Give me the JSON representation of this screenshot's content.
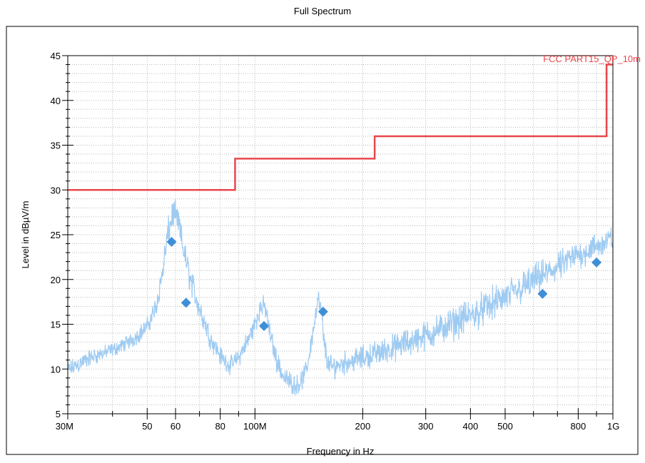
{
  "chart_data": {
    "type": "line",
    "title": "Full Spectrum",
    "xlabel": "Frequency in Hz",
    "ylabel": "Level in dBµV/m",
    "xscale": "log",
    "xlim": [
      30000000,
      1000000000
    ],
    "ylim": [
      5,
      45
    ],
    "grid": true,
    "x_ticks": [
      {
        "value": 30000000,
        "label": "30M"
      },
      {
        "value": 50000000,
        "label": "50"
      },
      {
        "value": 60000000,
        "label": "60"
      },
      {
        "value": 80000000,
        "label": "80"
      },
      {
        "value": 100000000,
        "label": "100M"
      },
      {
        "value": 200000000,
        "label": "200"
      },
      {
        "value": 300000000,
        "label": "300"
      },
      {
        "value": 400000000,
        "label": "400"
      },
      {
        "value": 500000000,
        "label": "500"
      },
      {
        "value": 800000000,
        "label": "800"
      },
      {
        "value": 1000000000,
        "label": "1G"
      }
    ],
    "y_ticks": [
      5,
      10,
      15,
      20,
      25,
      30,
      35,
      40,
      45
    ],
    "limit_line": {
      "name": "FCC PART15_QP_10m",
      "color": "#e8474c",
      "x": [
        30000000,
        88000000,
        88000000,
        216000000,
        216000000,
        960000000,
        960000000,
        1000000000
      ],
      "y": [
        30,
        30,
        33.5,
        33.5,
        36,
        36,
        44,
        44
      ]
    },
    "spectrum": {
      "color": "#9ecbf2",
      "envelope": {
        "x": [
          30000000,
          32000000,
          35000000,
          38000000,
          42000000,
          46000000,
          50000000,
          53000000,
          55000000,
          57000000,
          59000000,
          61000000,
          63000000,
          66000000,
          70000000,
          75000000,
          80000000,
          85000000,
          90000000,
          95000000,
          100000000,
          104000000,
          107000000,
          110000000,
          115000000,
          120000000,
          125000000,
          130000000,
          135000000,
          140000000,
          145000000,
          150000000,
          153000000,
          156000000,
          160000000,
          165000000,
          170000000,
          180000000,
          200000000,
          250000000,
          300000000,
          350000000,
          400000000,
          500000000,
          600000000,
          700000000,
          800000000,
          900000000,
          1000000000
        ],
        "low": [
          8.7,
          9.2,
          10.2,
          10.8,
          11.5,
          12.3,
          13.5,
          15.5,
          18.5,
          22.5,
          25.5,
          24.5,
          21.5,
          18.0,
          15.0,
          12.0,
          10.2,
          9.2,
          10.0,
          11.5,
          13.5,
          15.5,
          15.3,
          12.5,
          9.5,
          7.8,
          7.2,
          6.8,
          7.3,
          9.0,
          12.5,
          16.0,
          15.0,
          11.5,
          9.0,
          8.7,
          8.9,
          9.2,
          9.6,
          10.6,
          11.7,
          12.7,
          13.7,
          15.7,
          17.6,
          19.3,
          20.8,
          21.8,
          22.8
        ],
        "high": [
          11.0,
          11.8,
          12.5,
          12.8,
          13.5,
          14.5,
          16.0,
          18.5,
          22.5,
          27.0,
          29.5,
          28.5,
          25.5,
          22.0,
          18.5,
          15.0,
          12.8,
          11.5,
          12.5,
          14.5,
          16.5,
          18.5,
          18.3,
          15.5,
          12.5,
          10.5,
          10.0,
          9.5,
          10.0,
          11.5,
          15.5,
          19.3,
          18.3,
          14.5,
          12.0,
          11.7,
          12.0,
          12.3,
          12.9,
          14.4,
          15.8,
          17.1,
          18.2,
          20.3,
          22.0,
          23.4,
          24.7,
          25.5,
          26.5
        ]
      }
    },
    "markers": {
      "color": "#3f8fd6",
      "points": [
        {
          "x": 58500000,
          "y": 24.2
        },
        {
          "x": 64200000,
          "y": 17.4
        },
        {
          "x": 106000000,
          "y": 14.8
        },
        {
          "x": 155000000,
          "y": 16.4
        },
        {
          "x": 636000000,
          "y": 18.4
        },
        {
          "x": 900000000,
          "y": 21.9
        }
      ]
    }
  }
}
